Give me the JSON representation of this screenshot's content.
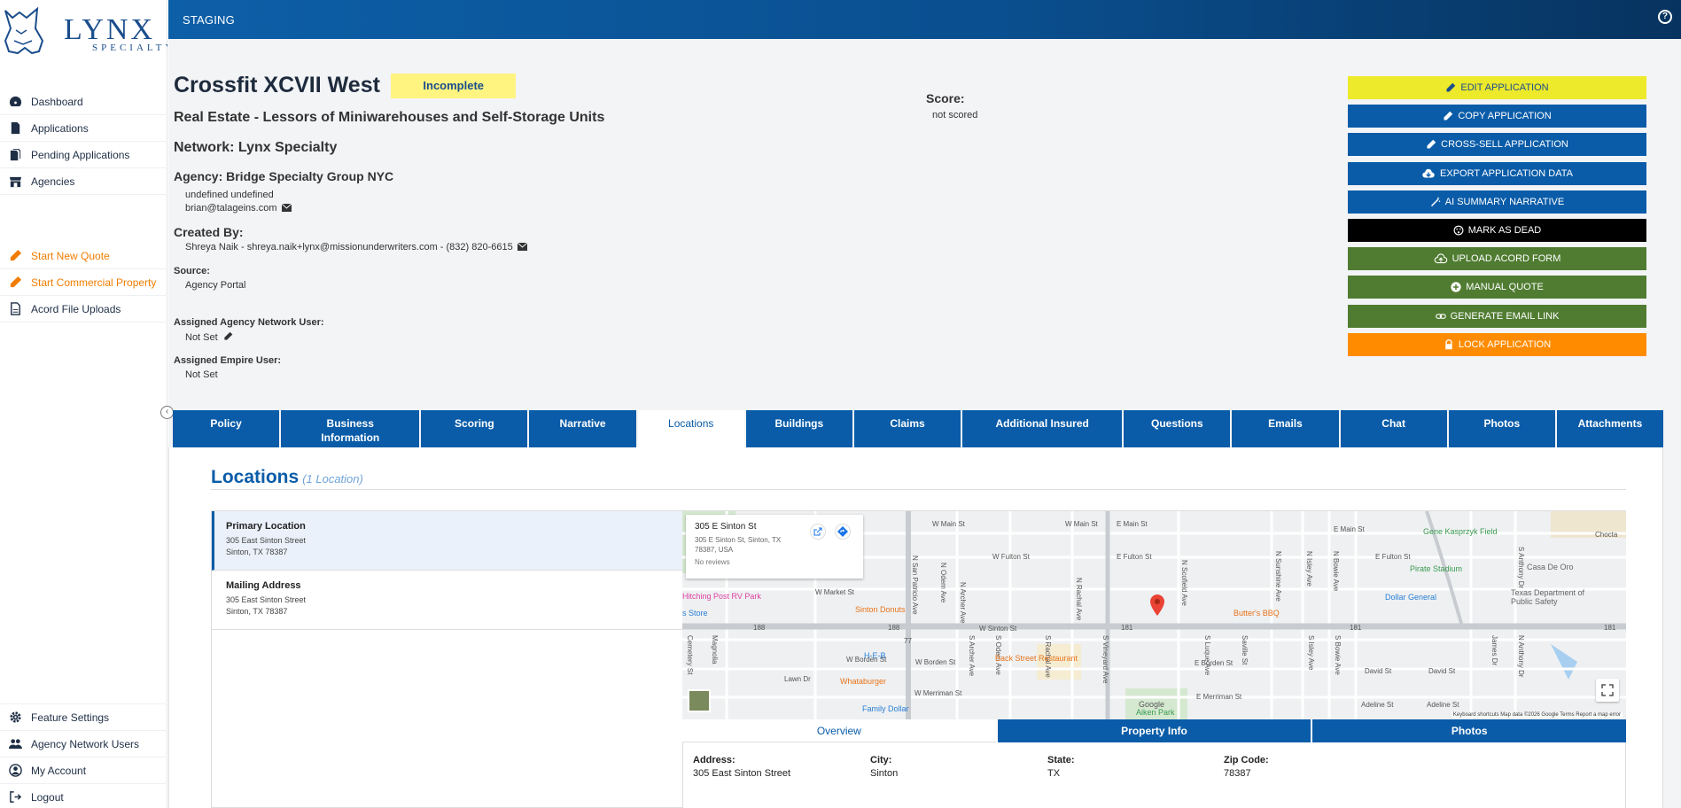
{
  "app": {
    "environment": "STAGING",
    "help_icon": "question-circle-icon",
    "logo_text": "LYNX",
    "logo_sub": "SPECIALTY"
  },
  "sidebar": {
    "main": [
      {
        "label": "Dashboard",
        "icon": "dashboard-icon"
      },
      {
        "label": "Applications",
        "icon": "document-icon"
      },
      {
        "label": "Pending Applications",
        "icon": "documents-icon"
      },
      {
        "label": "Agencies",
        "icon": "storefront-icon"
      }
    ],
    "actions": [
      {
        "label": "Start New Quote",
        "icon": "pencil-icon"
      },
      {
        "label": "Start Commercial Property",
        "icon": "pencil-icon"
      },
      {
        "label": "Acord File Uploads",
        "icon": "file-icon"
      }
    ],
    "bottom": [
      {
        "label": "Feature Settings",
        "icon": "gear-icon"
      },
      {
        "label": "Agency Network Users",
        "icon": "users-icon"
      },
      {
        "label": "My Account",
        "icon": "user-circle-icon"
      },
      {
        "label": "Logout",
        "icon": "logout-icon"
      }
    ]
  },
  "application": {
    "title": "Crossfit XCVII West",
    "status": "Incomplete",
    "industry": "Real Estate - Lessors of Miniwarehouses and Self-Storage Units",
    "network": "Network: Lynx Specialty",
    "agency": "Agency: Bridge Specialty Group NYC",
    "agency_contact_name": "undefined undefined",
    "agency_contact_email": "brian@talageins.com",
    "created_by_label": "Created By:",
    "created_by_value": "Shreya Naik - shreya.naik+lynx@missionunderwriters.com - (832) 820-6615",
    "source_label": "Source:",
    "source_value": "Agency Portal",
    "assigned_network_user_label": "Assigned Agency Network User:",
    "assigned_network_user_value": "Not Set",
    "assigned_empire_user_label": "Assigned Empire User:",
    "assigned_empire_user_value": "Not Set",
    "score_label": "Score:",
    "score_value": "not scored"
  },
  "action_buttons": [
    {
      "label": "EDIT APPLICATION",
      "icon": "pencil-icon",
      "color": "#ede92b"
    },
    {
      "label": "COPY APPLICATION",
      "icon": "pencil-icon",
      "color": "#0a5ca8"
    },
    {
      "label": "CROSS-SELL APPLICATION",
      "icon": "pencil-icon",
      "color": "#0a5ca8"
    },
    {
      "label": "EXPORT APPLICATION DATA",
      "icon": "cloud-download-icon",
      "color": "#0a5ca8"
    },
    {
      "label": "AI SUMMARY NARRATIVE",
      "icon": "magic-wand-icon",
      "color": "#0a5ca8"
    },
    {
      "label": "MARK AS DEAD",
      "icon": "dead-face-icon",
      "color": "#000000"
    },
    {
      "label": "UPLOAD ACORD FORM",
      "icon": "cloud-upload-icon",
      "color": "#507c32"
    },
    {
      "label": "MANUAL QUOTE",
      "icon": "plus-circle-icon",
      "color": "#507c32"
    },
    {
      "label": "GENERATE EMAIL LINK",
      "icon": "link-icon",
      "color": "#507c32"
    },
    {
      "label": "LOCK APPLICATION",
      "icon": "lock-icon",
      "color": "#ff8c00"
    }
  ],
  "tabs": [
    {
      "label": "Policy"
    },
    {
      "label": "Business Information"
    },
    {
      "label": "Scoring"
    },
    {
      "label": "Narrative"
    },
    {
      "label": "Locations",
      "active": true
    },
    {
      "label": "Buildings"
    },
    {
      "label": "Claims"
    },
    {
      "label": "Additional Insured"
    },
    {
      "label": "Questions"
    },
    {
      "label": "Emails"
    },
    {
      "label": "Chat"
    },
    {
      "label": "Photos"
    },
    {
      "label": "Attachments"
    }
  ],
  "locations": {
    "title": "Locations",
    "count": "(1 Location)",
    "items": [
      {
        "name": "Primary Location",
        "street": "305 East Sinton Street",
        "city_line": "Sinton, TX 78387",
        "active": true
      },
      {
        "name": "Mailing Address",
        "street": "305 East Sinton Street",
        "city_line": "Sinton, TX 78387"
      }
    ],
    "map": {
      "card_title": "305 E Sinton St",
      "card_address": "305 E Sinton St, Sinton, TX 78387, USA",
      "card_reviews": "No reviews",
      "streets": [
        "W Main St",
        "W Main St",
        "E Main St",
        "E Main St",
        "W Fulton St",
        "E Fulton St",
        "E Fulton St",
        "W Market St",
        "W Sinton St",
        "W Borden St",
        "W Borden St",
        "E Borden St",
        "Lawn Dr",
        "W Merriman St",
        "E Merriman St",
        "David St",
        "David St",
        "Adeline St",
        "Adeline St",
        "Magnolia",
        "Cemetery St",
        "N San Patricio Ave",
        "N Odem Ave",
        "N Archer Ave",
        "N Rachal Ave",
        "N Scofield Ave",
        "N Sunshine Ave",
        "N Isley Ave",
        "N Bowie Ave",
        "N Anthony Dr",
        "S Archer Ave",
        "S Odem Ave",
        "S Rachal Ave",
        "S Vineyard Ave",
        "S Luque Ave",
        "S Isley Ave",
        "S Bowie Ave",
        "S Anthony Dr",
        "James Dr",
        "Saville St",
        "Chocta"
      ],
      "pois": [
        {
          "label": "Hitching Post RV Park",
          "color": "#e040a0"
        },
        {
          "label": "s Store",
          "color": "#2a7fd4"
        },
        {
          "label": "Sinton Donuts",
          "color": "#e8731a"
        },
        {
          "label": "H-E-B",
          "color": "#2a7fd4"
        },
        {
          "label": "Back Street Restaurant",
          "color": "#e8731a"
        },
        {
          "label": "Whataburger",
          "color": "#e8731a"
        },
        {
          "label": "Family Dollar",
          "color": "#2a7fd4"
        },
        {
          "label": "Aiken Park",
          "color": "#3a9a50"
        },
        {
          "label": "Butter's BBQ",
          "color": "#e8731a"
        },
        {
          "label": "Gene Kasprzyk Field",
          "color": "#3a9a50"
        },
        {
          "label": "Pirate Stadium",
          "color": "#3a9a50"
        },
        {
          "label": "Casa De Oro",
          "color": "#666666"
        },
        {
          "label": "Dollar General",
          "color": "#2a7fd4"
        },
        {
          "label": "Texas Department of Public Safety",
          "color": "#666666"
        }
      ],
      "highway_labels": [
        "188",
        "188",
        "181",
        "181",
        "181",
        "77"
      ],
      "attribution": "Keyboard shortcuts   Map data ©2026 Google   Terms   Report a map error",
      "google": "Google"
    },
    "subtabs": [
      {
        "label": "Overview",
        "active": true
      },
      {
        "label": "Property Info"
      },
      {
        "label": "Photos"
      }
    ],
    "details": [
      {
        "label": "Address:",
        "value": "305 East Sinton Street"
      },
      {
        "label": "City:",
        "value": "Sinton"
      },
      {
        "label": "State:",
        "value": "TX"
      },
      {
        "label": "Zip Code:",
        "value": "78387"
      }
    ]
  }
}
